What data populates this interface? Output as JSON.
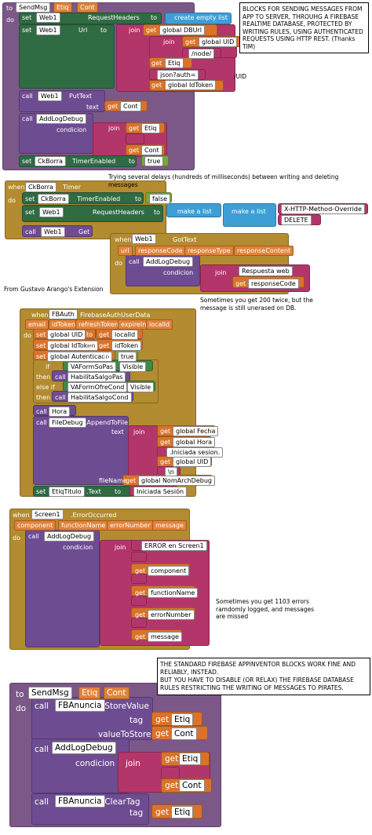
{
  "notes": [
    "BLOCKS FOR SENDING MESSAGES FROM APP TO SERVER, THROUHG A FIREBASE REALTIME DATABASE,  PROTECTED BY WRITING RULES, USING AUTHENTICATED REQUESTS USING HTTP REST.  (Thanks TIM)",
    "/UID",
    "Trying several delays (hundreds of milliseconds) between writing and deleting messages",
    "Sometimes you get 200 twice, but the message is still unerased on DB.",
    "From Gustavo Arango's Extension",
    "Sometimes you get 1103 errors ramdomly logged, and messages are missed",
    "THE STANDARD FIREBASE APPINVENTOR BLOCKS WORK FINE AND RELIABLY,  INSTEAD.",
    "BUT YOU HAVE TO DISABLE (OR RELAX) THE FIREBASE DATABASE RULES RESTRICTING THE WRITING OF MESSAGES TO PIRATES."
  ],
  "s1": [
    "to",
    "SendMsg",
    "Etiq",
    "Cont",
    "do",
    "set",
    "Web1",
    "RequestHeaders",
    "to",
    "create empty list",
    "set",
    "Web1",
    "Url",
    "to",
    "join",
    "get",
    "global DBUrl",
    "join",
    "get",
    "global UID",
    "/node/",
    "get",
    "Etiq",
    "json?auth=",
    "get",
    "global IdToken",
    "call",
    "Web1",
    "PutText",
    "text",
    "get",
    "Cont",
    "call",
    "AddLogDebug",
    "condicion",
    "join",
    "get",
    "Etiq",
    "get",
    "Cont",
    "set",
    "CkBorra",
    "TimerEnabled",
    "to",
    "true"
  ],
  "s2": [
    "when",
    "CkBorra",
    "Timer",
    "do",
    "set",
    "CkBorra",
    "TimerEnabled",
    "to",
    "false",
    "set",
    "Web1",
    "RequestHeaders",
    "to",
    "make a list",
    "make a list",
    "X-HTTP-Method-Override",
    "DELETE",
    "call",
    "Web1",
    "Get"
  ],
  "s3": [
    "when",
    "Web1",
    "GotText",
    "url",
    "responseCode",
    "responseType",
    "responseContent",
    "do",
    "call",
    "AddLogDebug",
    "condicion",
    "join",
    "Respuesta web",
    "get",
    "responseCode"
  ],
  "s4": [
    "when",
    "FBAuth",
    "FirebaseAuthUserData",
    "email",
    "idToken",
    "refreshToken",
    "expireIn",
    "localId",
    "do",
    "set",
    "global UID",
    "to",
    "get",
    "localId",
    "set",
    "global IdToken",
    "to",
    "get",
    "idToken",
    "set",
    "global Autenticado",
    "to",
    "true",
    "if",
    "VAFormSoPas",
    "Visible",
    "then",
    "call",
    "HabilitaSalgoPas",
    "else if",
    "VAFormOfreCond",
    "Visible",
    "then",
    "call",
    "HabilitaSalgoCond",
    "call",
    "Hora",
    "call",
    "FileDebug",
    ".AppendToFile",
    "text",
    "join",
    "get",
    "global Fecha",
    "get",
    "global Hora",
    ".Iniciada sesion.",
    "get",
    "global UID",
    "\\n",
    "fileName",
    "get",
    "global NomArchDebug",
    "set",
    "EtiqTitulo",
    ".Text",
    "to",
    "Iniciada Sesión"
  ],
  "s5": [
    "when",
    "Screen1",
    ".ErrorOccurred",
    "component",
    "functionName",
    "errorNumber",
    "message",
    "do",
    "call",
    "AddLogDebug",
    "condicion",
    "join",
    "ERROR en Screen1",
    "get",
    "component",
    "get",
    "functionName",
    "get",
    "errorNumber",
    "get",
    "message"
  ],
  "s6": [
    "to",
    "SendMsg",
    "Etiq",
    "Cont",
    "do",
    "call",
    "FBAnuncia",
    ".StoreValue",
    "tag",
    "get",
    "Etiq",
    "valueToStore",
    "get",
    "Cont",
    "call",
    "AddLogDebug",
    "condicion",
    "join",
    "get",
    "Etiq",
    "get",
    "Cont",
    "call",
    "FBAnuncia",
    ".ClearTag",
    "tag",
    "get",
    "Etiq"
  ]
}
